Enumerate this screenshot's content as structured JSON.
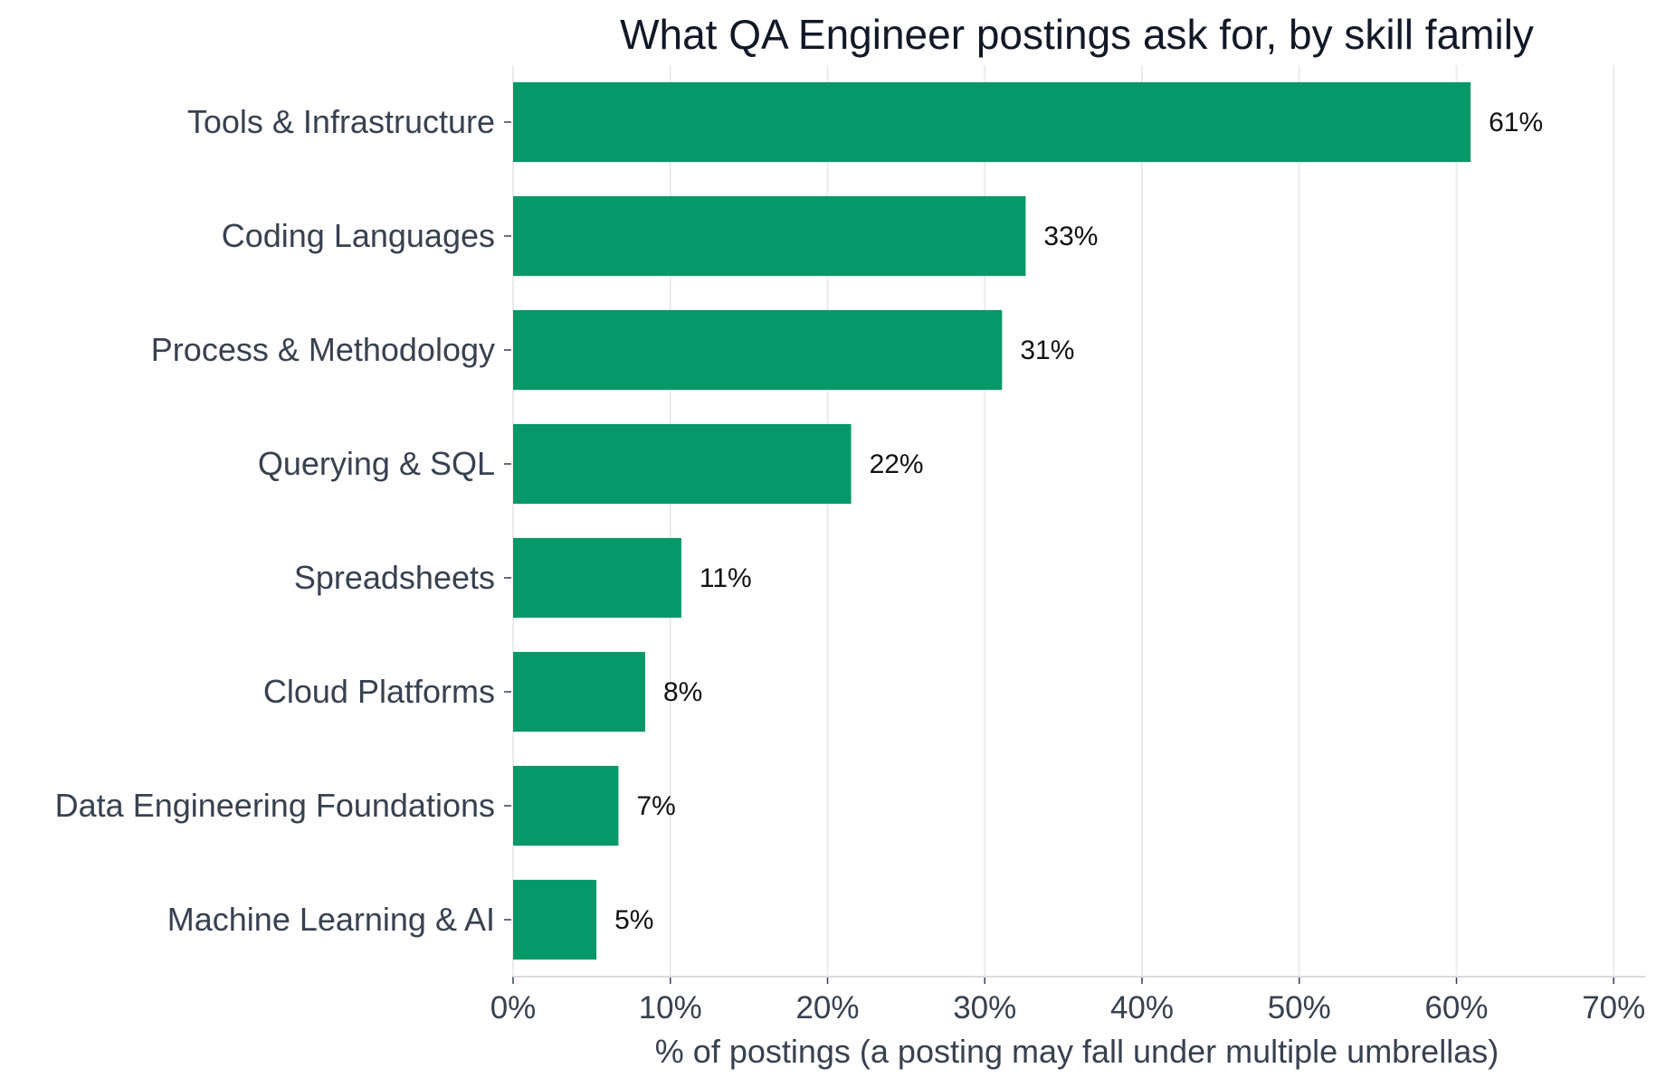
{
  "chart_data": {
    "type": "bar",
    "orientation": "horizontal",
    "title": "What QA Engineer postings ask for, by skill family",
    "xlabel": "% of postings (a posting may fall under multiple umbrellas)",
    "ylabel": "",
    "xlim": [
      0,
      72
    ],
    "x_ticks": [
      0,
      10,
      20,
      30,
      40,
      50,
      60,
      70
    ],
    "x_tick_labels": [
      "0%",
      "10%",
      "20%",
      "30%",
      "40%",
      "50%",
      "60%",
      "70%"
    ],
    "categories": [
      "Tools & Infrastructure",
      "Coding Languages",
      "Process & Methodology",
      "Querying & SQL",
      "Spreadsheets",
      "Cloud Platforms",
      "Data Engineering Foundations",
      "Machine Learning & AI"
    ],
    "values": [
      60.9,
      32.6,
      31.1,
      21.5,
      10.7,
      8.4,
      6.7,
      5.3
    ],
    "data_labels": [
      "61%",
      "33%",
      "31%",
      "22%",
      "11%",
      "8%",
      "7%",
      "5%"
    ],
    "grid": "vertical",
    "legend": "none",
    "colors": {
      "bar": "#069869",
      "grid": "#ebebeb",
      "axis": "#dcdcdc",
      "tick_text": "#374151",
      "title_text": "#111827",
      "label_text": "#111111"
    }
  }
}
